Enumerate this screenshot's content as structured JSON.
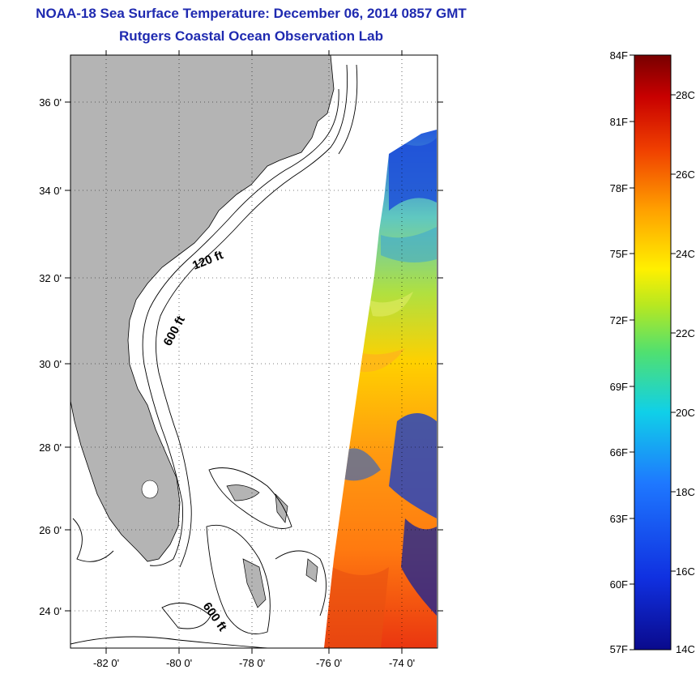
{
  "header": {
    "title": "NOAA-18 Sea Surface Temperature:  December 06, 2014 0857 GMT",
    "subtitle": "Rutgers Coastal Ocean Observation Lab"
  },
  "map": {
    "lon_range": [
      -83,
      -73
    ],
    "lat_range": [
      23,
      37
    ],
    "lat_ticks": [
      "36 0'",
      "34 0'",
      "32 0'",
      "30 0'",
      "28 0'",
      "26 0'",
      "24 0'"
    ],
    "lon_ticks": [
      "-82 0'",
      "-80 0'",
      "-78 0'",
      "-76 0'",
      "-74 0'"
    ],
    "isobaths": [
      {
        "label": "120 ft"
      },
      {
        "label": "600 ft"
      },
      {
        "label": "600 ft"
      }
    ],
    "land_color": "#b4b4b4"
  },
  "colorbar": {
    "fahrenheit_labels": [
      "84F",
      "81F",
      "78F",
      "75F",
      "72F",
      "69F",
      "66F",
      "63F",
      "60F",
      "57F"
    ],
    "celsius_labels": [
      "28C",
      "26C",
      "24C",
      "22C",
      "20C",
      "18C",
      "16C",
      "14C"
    ],
    "range_celsius": [
      14,
      29
    ]
  }
}
